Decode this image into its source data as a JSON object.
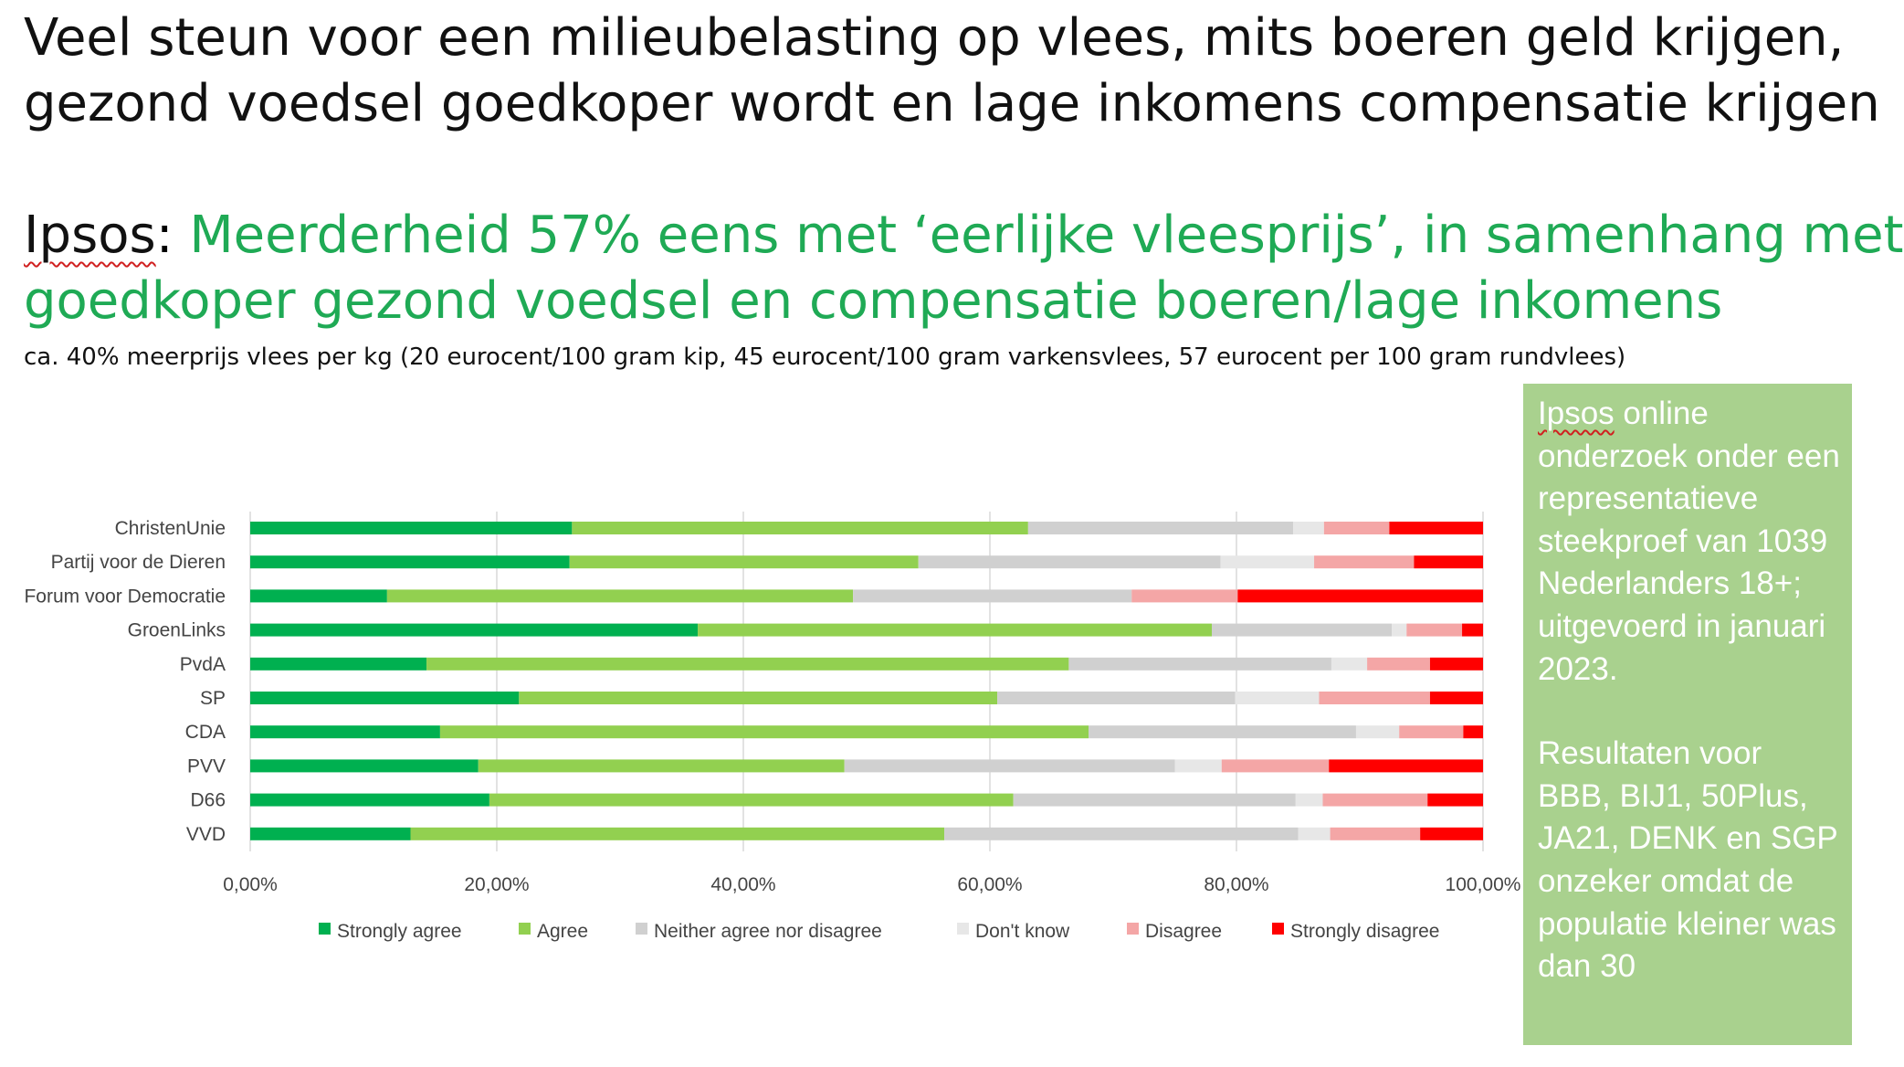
{
  "title_lines": [
    "Veel steun voor een milieubelasting op vlees, mits boeren geld krijgen,",
    "gezond voedsel goedkoper wordt en lage inkomens compensatie krijgen"
  ],
  "subtitle": {
    "source": "Ipsos",
    "separator": ": ",
    "lines": [
      "Meerderheid 57% eens met ‘eerlijke vleesprijs’, in samenhang met",
      "goedkoper gezond voedsel en compensatie boeren/lage inkomens"
    ]
  },
  "note": "ca. 40% meerprijs vlees per kg (20 eurocent/100 gram kip, 45 eurocent/100 gram varkensvlees, 57 eurocent per 100 gram rundvlees)",
  "sidebox": {
    "source": "Ipsos",
    "para1_rest": " online onderzoek onder een representatieve steekproef van 1039 Nederlanders 18+; uitgevoerd in januari 2023.",
    "para2": "Resultaten voor BBB, BIJ1, 50Plus, JA21, DENK en SGP onzeker omdat de populatie kleiner was dan 30"
  },
  "colors": {
    "strongly_agree": "#00b050",
    "agree": "#92d050",
    "neither": "#d0d0d0",
    "dont_know": "#e7e7e7",
    "disagree": "#f4a6a6",
    "strongly_disagree": "#ff0000",
    "green_text": "#1faa55",
    "sidebox": "#a9d18e"
  },
  "chart_data": {
    "type": "bar",
    "orientation": "horizontal",
    "stacked": true,
    "categories": [
      "ChristenUnie",
      "Partij voor de Dieren",
      "Forum voor Democratie",
      "GroenLinks",
      "PvdA",
      "SP",
      "CDA",
      "PVV",
      "D66",
      "VVD"
    ],
    "xlim": [
      0,
      100
    ],
    "xticks": [
      "0,00%",
      "20,00%",
      "40,00%",
      "60,00%",
      "80,00%",
      "100,00%"
    ],
    "grid": true,
    "legend_position": "bottom",
    "series": [
      {
        "name": "Strongly agree",
        "values": [
          26.1,
          25.9,
          11.1,
          36.3,
          14.3,
          21.8,
          15.4,
          18.5,
          19.4,
          13.0
        ]
      },
      {
        "name": "Agree",
        "values": [
          37.0,
          28.3,
          37.8,
          41.7,
          52.1,
          38.8,
          52.6,
          29.7,
          42.5,
          43.3
        ]
      },
      {
        "name": "Neither agree nor disagree",
        "values": [
          21.5,
          24.5,
          22.6,
          14.6,
          21.3,
          19.3,
          21.7,
          26.8,
          22.9,
          28.7
        ]
      },
      {
        "name": "Don't know",
        "values": [
          2.5,
          7.6,
          0,
          1.2,
          2.9,
          6.8,
          3.5,
          3.8,
          2.2,
          2.6
        ]
      },
      {
        "name": "Disagree",
        "values": [
          5.3,
          8.1,
          8.6,
          4.5,
          5.1,
          9.0,
          5.2,
          8.7,
          8.5,
          7.3
        ]
      },
      {
        "name": "Strongly disagree",
        "values": [
          7.6,
          5.6,
          19.9,
          1.7,
          4.3,
          4.3,
          1.6,
          12.5,
          4.5,
          5.1
        ]
      }
    ]
  }
}
